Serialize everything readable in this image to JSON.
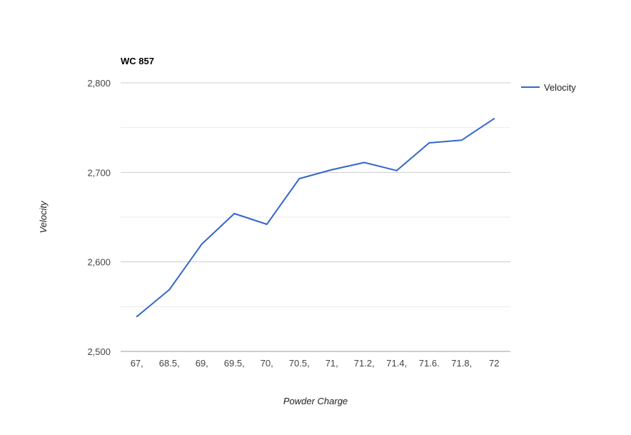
{
  "chart_data": {
    "type": "line",
    "title": "WC 857",
    "xlabel": "Powder Charge",
    "ylabel": "Velocity",
    "categories": [
      "67,",
      "68.5,",
      "69,",
      "69.5,",
      "70,",
      "70.5,",
      "71,",
      "71.2,",
      "71.4,",
      "71.6.",
      "71.8,",
      "72"
    ],
    "series": [
      {
        "name": "Velocity",
        "color": "#3366cc",
        "values": [
          2539,
          2569,
          2620,
          2654,
          2642,
          2693,
          2703,
          2711,
          2702,
          2733,
          2736,
          2760
        ]
      }
    ],
    "ylim": [
      2500,
      2800
    ],
    "yticks": [
      {
        "value": 2500,
        "label": "2,500"
      },
      {
        "value": 2600,
        "label": "2,600"
      },
      {
        "value": 2700,
        "label": "2,700"
      },
      {
        "value": 2800,
        "label": "2,800"
      }
    ],
    "minor_gridlines": [
      2550,
      2650,
      2750
    ],
    "grid": true,
    "legend_position": "right"
  }
}
